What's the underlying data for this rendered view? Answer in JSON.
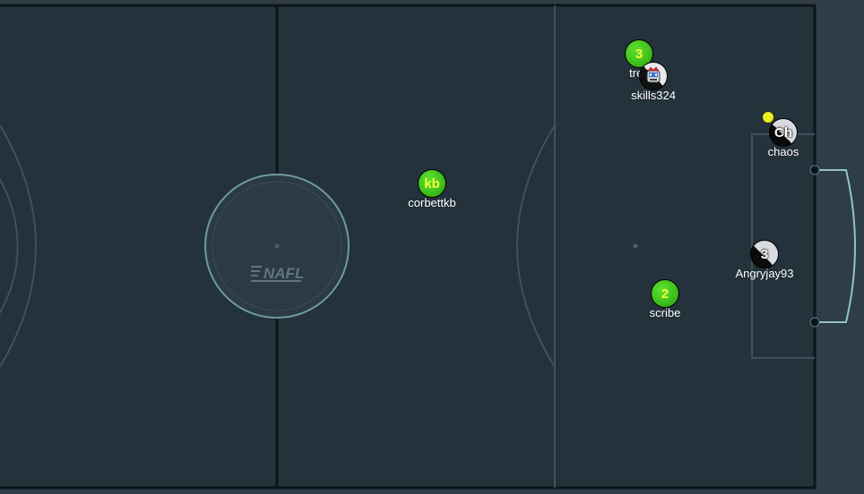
{
  "field": {
    "logo_text": "NAFL",
    "colors": {
      "pitch": "#24323b",
      "outer": "#2e3d47",
      "line_dark": "#0e151a",
      "line_light": "#4a6068",
      "circle": "#6e9aa0",
      "goal": "#8fc4c4"
    }
  },
  "players": [
    {
      "id": "trefi",
      "label": "trefi",
      "avatar": "3",
      "style": "green"
    },
    {
      "id": "skills324",
      "label": "skills324",
      "avatar": "",
      "style": "face"
    },
    {
      "id": "chaos",
      "label": "chaos",
      "avatar": "Ch",
      "style": "bw"
    },
    {
      "id": "corbettkb",
      "label": "corbettkb",
      "avatar": "kb",
      "style": "green"
    },
    {
      "id": "angryjay93",
      "label": "Angryjay93",
      "avatar": "3",
      "style": "bw"
    },
    {
      "id": "scribe",
      "label": "scribe",
      "avatar": "2",
      "style": "green"
    }
  ],
  "ball": {
    "color": "#e8ef24"
  }
}
